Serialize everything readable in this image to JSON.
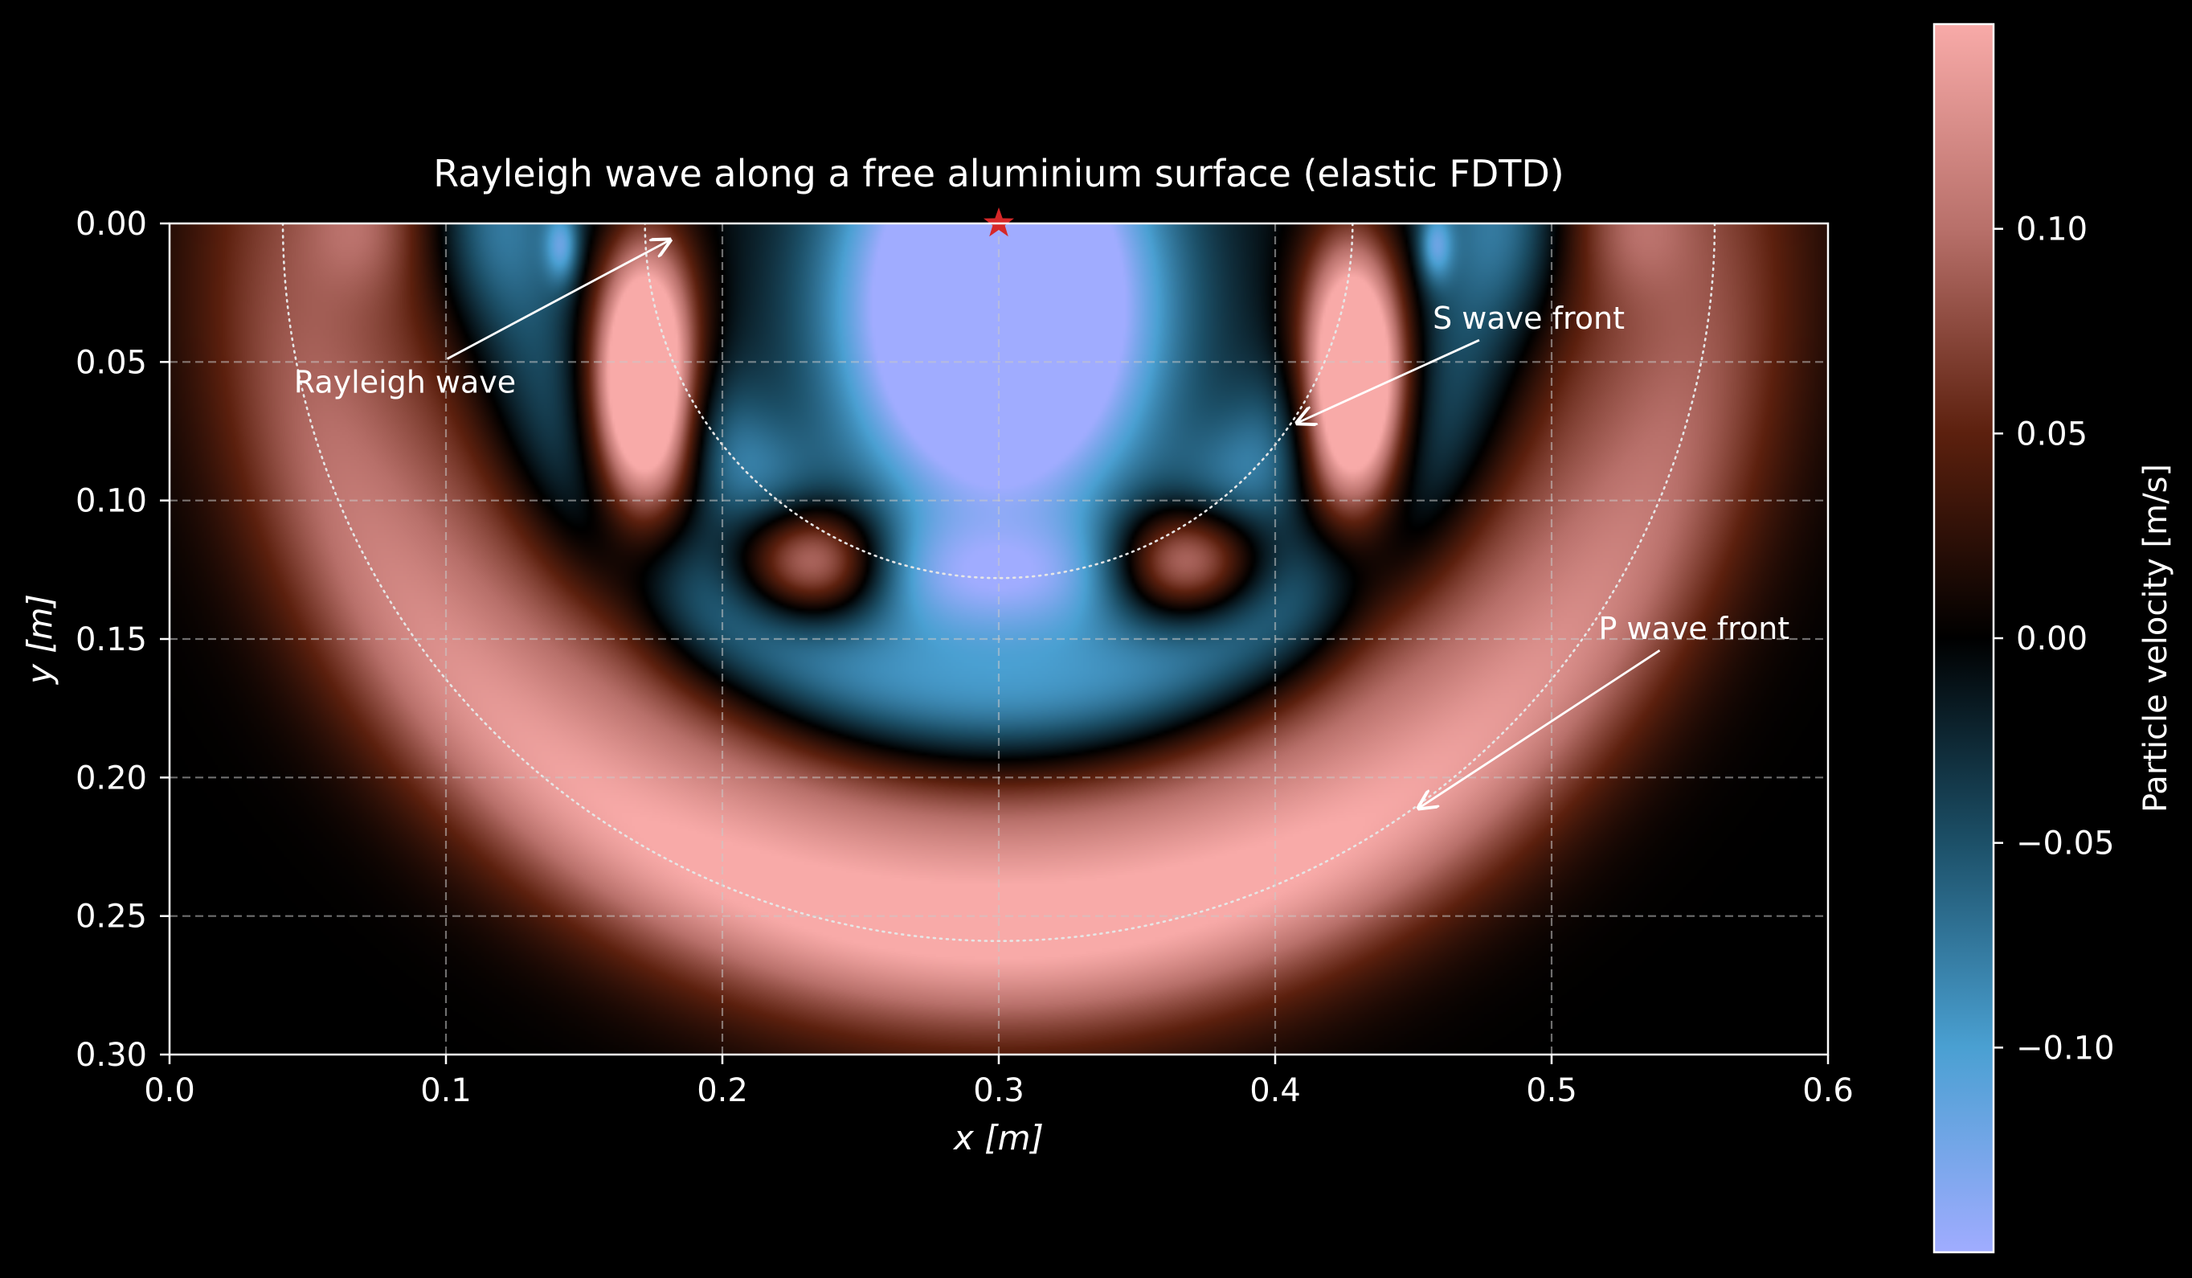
{
  "chart_data": {
    "type": "heatmap",
    "title": "Rayleigh wave along a free aluminium surface (elastic FDTD)",
    "xlabel": "x [m]",
    "ylabel": "y [m]",
    "xlim": [
      0.0,
      0.6
    ],
    "ylim": [
      0.3,
      0.0
    ],
    "y_inverted": true,
    "grid": true,
    "grid_style": "dashed",
    "xticks": [
      0.0,
      0.1,
      0.2,
      0.3,
      0.4,
      0.5,
      0.6
    ],
    "xtick_labels": [
      "0.0",
      "0.1",
      "0.2",
      "0.3",
      "0.4",
      "0.5",
      "0.6"
    ],
    "yticks": [
      0.0,
      0.05,
      0.1,
      0.15,
      0.2,
      0.25,
      0.3
    ],
    "ytick_labels": [
      "0.00",
      "0.05",
      "0.10",
      "0.15",
      "0.20",
      "0.25",
      "0.30"
    ],
    "colorbar": {
      "label": "Particle velocity [m/s]",
      "range": [
        -0.15,
        0.15
      ],
      "ticks": [
        0.1,
        0.05,
        0.0,
        -0.05,
        -0.1
      ],
      "tick_labels": [
        "0.10",
        "0.05",
        "0.00",
        "−0.05",
        "−0.10"
      ],
      "colormap": [
        {
          "v": -0.15,
          "color": "#a0acff"
        },
        {
          "v": -0.1,
          "color": "#4aa0d2"
        },
        {
          "v": -0.05,
          "color": "#1c5068"
        },
        {
          "v": 0.0,
          "color": "#000000"
        },
        {
          "v": 0.05,
          "color": "#5c200e"
        },
        {
          "v": 0.1,
          "color": "#b8706a"
        },
        {
          "v": 0.15,
          "color": "#f8aaa8"
        }
      ]
    },
    "source": {
      "x": 0.3,
      "y": 0.0,
      "marker": "star",
      "color": "#d62728"
    },
    "wavefront_circles": [
      {
        "name": "S wave front",
        "center": [
          0.3,
          0.0
        ],
        "radius": 0.128
      },
      {
        "name": "P wave front",
        "center": [
          0.3,
          0.0
        ],
        "radius": 0.259
      }
    ],
    "annotations": [
      {
        "text": "Rayleigh wave",
        "text_xy": [
          0.045,
          0.057
        ],
        "arrow_to": [
          0.181,
          0.006
        ]
      },
      {
        "text": "S wave front",
        "text_xy": [
          0.457,
          0.034
        ],
        "arrow_to": [
          0.408,
          0.072
        ]
      },
      {
        "text": "P wave front",
        "text_xy": [
          0.517,
          0.146
        ],
        "arrow_to": [
          0.452,
          0.211
        ]
      }
    ],
    "field_bands": [
      {
        "label": "P bulk",
        "radius": 0.255,
        "value": 0.16,
        "width": 0.04
      },
      {
        "label": "P rim",
        "radius": 0.205,
        "value": 0.07,
        "width": 0.028
      },
      {
        "label": "negative ring",
        "radius": 0.175,
        "value": -0.1,
        "width": 0.032
      },
      {
        "label": "S ring",
        "radius": 0.128,
        "value": -0.09,
        "width": 0.022
      }
    ],
    "field_blobs": [
      {
        "label": "central lobe",
        "x": 0.3,
        "y": 0.03,
        "sx": 0.055,
        "sy": 0.075,
        "value": -0.3
      },
      {
        "label": "Rayleigh left",
        "x": 0.172,
        "y": 0.055,
        "sx": 0.019,
        "sy": 0.052,
        "value": 0.33
      },
      {
        "label": "Rayleigh right",
        "x": 0.428,
        "y": 0.055,
        "sx": 0.019,
        "sy": 0.052,
        "value": 0.33
      },
      {
        "label": "lobe foot left",
        "x": 0.235,
        "y": 0.12,
        "sx": 0.028,
        "sy": 0.022,
        "value": 0.2
      },
      {
        "label": "lobe foot right",
        "x": 0.365,
        "y": 0.12,
        "sx": 0.028,
        "sy": 0.022,
        "value": 0.2
      },
      {
        "label": "outer surface left",
        "x": 0.115,
        "y": 0.0,
        "sx": 0.022,
        "sy": 0.035,
        "value": -0.05
      },
      {
        "label": "outer surface right",
        "x": 0.485,
        "y": 0.0,
        "sx": 0.022,
        "sy": 0.035,
        "value": -0.05
      },
      {
        "label": "blue spot left",
        "x": 0.142,
        "y": 0.008,
        "sx": 0.006,
        "sy": 0.013,
        "value": -0.08
      },
      {
        "label": "blue spot right",
        "x": 0.458,
        "y": 0.008,
        "sx": 0.006,
        "sy": 0.013,
        "value": -0.08
      },
      {
        "label": "surface tail left",
        "x": 0.07,
        "y": 0.0,
        "sx": 0.02,
        "sy": 0.025,
        "value": 0.04
      },
      {
        "label": "surface tail right",
        "x": 0.53,
        "y": 0.0,
        "sx": 0.02,
        "sy": 0.025,
        "value": 0.04
      }
    ]
  }
}
